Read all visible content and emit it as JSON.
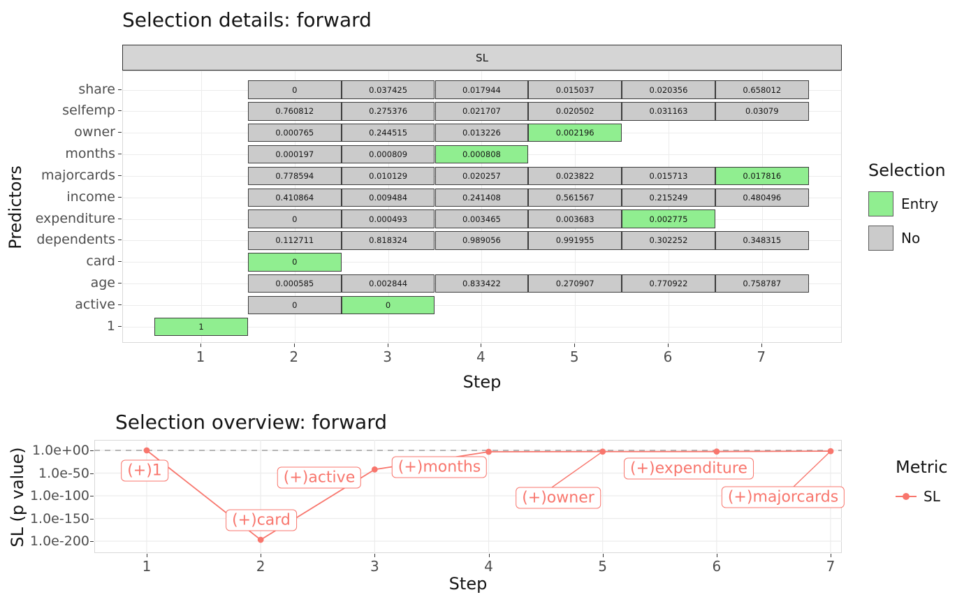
{
  "chart_data": [
    {
      "type": "heatmap",
      "title": "Selection details: forward",
      "facet_label": "SL",
      "xlabel": "Step",
      "ylabel": "Predictors",
      "x_ticks": [
        "1",
        "2",
        "3",
        "4",
        "5",
        "6",
        "7"
      ],
      "y_categories": [
        "share",
        "selfemp",
        "owner",
        "months",
        "majorcards",
        "income",
        "expenditure",
        "dependents",
        "card",
        "age",
        "active",
        "1"
      ],
      "legend": {
        "title": "Selection",
        "entries": [
          {
            "label": "Entry",
            "key": "entry"
          },
          {
            "label": "No",
            "key": "no"
          }
        ]
      },
      "colors": {
        "entry": "#90ee90",
        "no": "#cbcbcb"
      },
      "cells": [
        {
          "predictor": "share",
          "step": 2,
          "value": "0",
          "selection": "no"
        },
        {
          "predictor": "share",
          "step": 3,
          "value": "0.037425",
          "selection": "no"
        },
        {
          "predictor": "share",
          "step": 4,
          "value": "0.017944",
          "selection": "no"
        },
        {
          "predictor": "share",
          "step": 5,
          "value": "0.015037",
          "selection": "no"
        },
        {
          "predictor": "share",
          "step": 6,
          "value": "0.020356",
          "selection": "no"
        },
        {
          "predictor": "share",
          "step": 7,
          "value": "0.658012",
          "selection": "no"
        },
        {
          "predictor": "selfemp",
          "step": 2,
          "value": "0.760812",
          "selection": "no"
        },
        {
          "predictor": "selfemp",
          "step": 3,
          "value": "0.275376",
          "selection": "no"
        },
        {
          "predictor": "selfemp",
          "step": 4,
          "value": "0.021707",
          "selection": "no"
        },
        {
          "predictor": "selfemp",
          "step": 5,
          "value": "0.020502",
          "selection": "no"
        },
        {
          "predictor": "selfemp",
          "step": 6,
          "value": "0.031163",
          "selection": "no"
        },
        {
          "predictor": "selfemp",
          "step": 7,
          "value": "0.03079",
          "selection": "no"
        },
        {
          "predictor": "owner",
          "step": 2,
          "value": "0.000765",
          "selection": "no"
        },
        {
          "predictor": "owner",
          "step": 3,
          "value": "0.244515",
          "selection": "no"
        },
        {
          "predictor": "owner",
          "step": 4,
          "value": "0.013226",
          "selection": "no"
        },
        {
          "predictor": "owner",
          "step": 5,
          "value": "0.002196",
          "selection": "entry"
        },
        {
          "predictor": "months",
          "step": 2,
          "value": "0.000197",
          "selection": "no"
        },
        {
          "predictor": "months",
          "step": 3,
          "value": "0.000809",
          "selection": "no"
        },
        {
          "predictor": "months",
          "step": 4,
          "value": "0.000808",
          "selection": "entry"
        },
        {
          "predictor": "majorcards",
          "step": 2,
          "value": "0.778594",
          "selection": "no"
        },
        {
          "predictor": "majorcards",
          "step": 3,
          "value": "0.010129",
          "selection": "no"
        },
        {
          "predictor": "majorcards",
          "step": 4,
          "value": "0.020257",
          "selection": "no"
        },
        {
          "predictor": "majorcards",
          "step": 5,
          "value": "0.023822",
          "selection": "no"
        },
        {
          "predictor": "majorcards",
          "step": 6,
          "value": "0.015713",
          "selection": "no"
        },
        {
          "predictor": "majorcards",
          "step": 7,
          "value": "0.017816",
          "selection": "entry"
        },
        {
          "predictor": "income",
          "step": 2,
          "value": "0.410864",
          "selection": "no"
        },
        {
          "predictor": "income",
          "step": 3,
          "value": "0.009484",
          "selection": "no"
        },
        {
          "predictor": "income",
          "step": 4,
          "value": "0.241408",
          "selection": "no"
        },
        {
          "predictor": "income",
          "step": 5,
          "value": "0.561567",
          "selection": "no"
        },
        {
          "predictor": "income",
          "step": 6,
          "value": "0.215249",
          "selection": "no"
        },
        {
          "predictor": "income",
          "step": 7,
          "value": "0.480496",
          "selection": "no"
        },
        {
          "predictor": "expenditure",
          "step": 2,
          "value": "0",
          "selection": "no"
        },
        {
          "predictor": "expenditure",
          "step": 3,
          "value": "0.000493",
          "selection": "no"
        },
        {
          "predictor": "expenditure",
          "step": 4,
          "value": "0.003465",
          "selection": "no"
        },
        {
          "predictor": "expenditure",
          "step": 5,
          "value": "0.003683",
          "selection": "no"
        },
        {
          "predictor": "expenditure",
          "step": 6,
          "value": "0.002775",
          "selection": "entry"
        },
        {
          "predictor": "dependents",
          "step": 2,
          "value": "0.112711",
          "selection": "no"
        },
        {
          "predictor": "dependents",
          "step": 3,
          "value": "0.818324",
          "selection": "no"
        },
        {
          "predictor": "dependents",
          "step": 4,
          "value": "0.989056",
          "selection": "no"
        },
        {
          "predictor": "dependents",
          "step": 5,
          "value": "0.991955",
          "selection": "no"
        },
        {
          "predictor": "dependents",
          "step": 6,
          "value": "0.302252",
          "selection": "no"
        },
        {
          "predictor": "dependents",
          "step": 7,
          "value": "0.348315",
          "selection": "no"
        },
        {
          "predictor": "card",
          "step": 2,
          "value": "0",
          "selection": "entry"
        },
        {
          "predictor": "age",
          "step": 2,
          "value": "0.000585",
          "selection": "no"
        },
        {
          "predictor": "age",
          "step": 3,
          "value": "0.002844",
          "selection": "no"
        },
        {
          "predictor": "age",
          "step": 4,
          "value": "0.833422",
          "selection": "no"
        },
        {
          "predictor": "age",
          "step": 5,
          "value": "0.270907",
          "selection": "no"
        },
        {
          "predictor": "age",
          "step": 6,
          "value": "0.770922",
          "selection": "no"
        },
        {
          "predictor": "age",
          "step": 7,
          "value": "0.758787",
          "selection": "no"
        },
        {
          "predictor": "active",
          "step": 2,
          "value": "0",
          "selection": "no"
        },
        {
          "predictor": "active",
          "step": 3,
          "value": "0",
          "selection": "entry"
        },
        {
          "predictor": "1",
          "step": 1,
          "value": "1",
          "selection": "entry"
        }
      ]
    },
    {
      "type": "line",
      "title": "Selection overview: forward",
      "xlabel": "Step",
      "ylabel": "SL (p value)",
      "x": [
        1,
        2,
        3,
        4,
        5,
        6,
        7
      ],
      "y_log10": [
        0,
        -197,
        -42,
        -3.1,
        -2.66,
        -2.56,
        -1.75
      ],
      "p_values": [
        1,
        1e-197,
        1e-42,
        0.000808,
        0.002196,
        0.002775,
        0.017816
      ],
      "point_labels": [
        "(+)1",
        "(+)card",
        "(+)active",
        "(+)months",
        "(+)owner",
        "(+)expenditure",
        "(+)majorcards"
      ],
      "x_ticks": [
        "1",
        "2",
        "3",
        "4",
        "5",
        "6",
        "7"
      ],
      "y_ticks": [
        {
          "label": "1.0e+00",
          "log10": 0
        },
        {
          "label": "1.0e-50",
          "log10": -50
        },
        {
          "label": "1.0e-100",
          "log10": -100
        },
        {
          "label": "1.0e-150",
          "log10": -150
        },
        {
          "label": "1.0e-200",
          "log10": -200
        }
      ],
      "ylim_log10": [
        -200,
        0
      ],
      "reference_line_log10": 0,
      "legend": {
        "title": "Metric",
        "entries": [
          {
            "label": "SL"
          }
        ]
      },
      "series_color": "#f8766d"
    }
  ]
}
